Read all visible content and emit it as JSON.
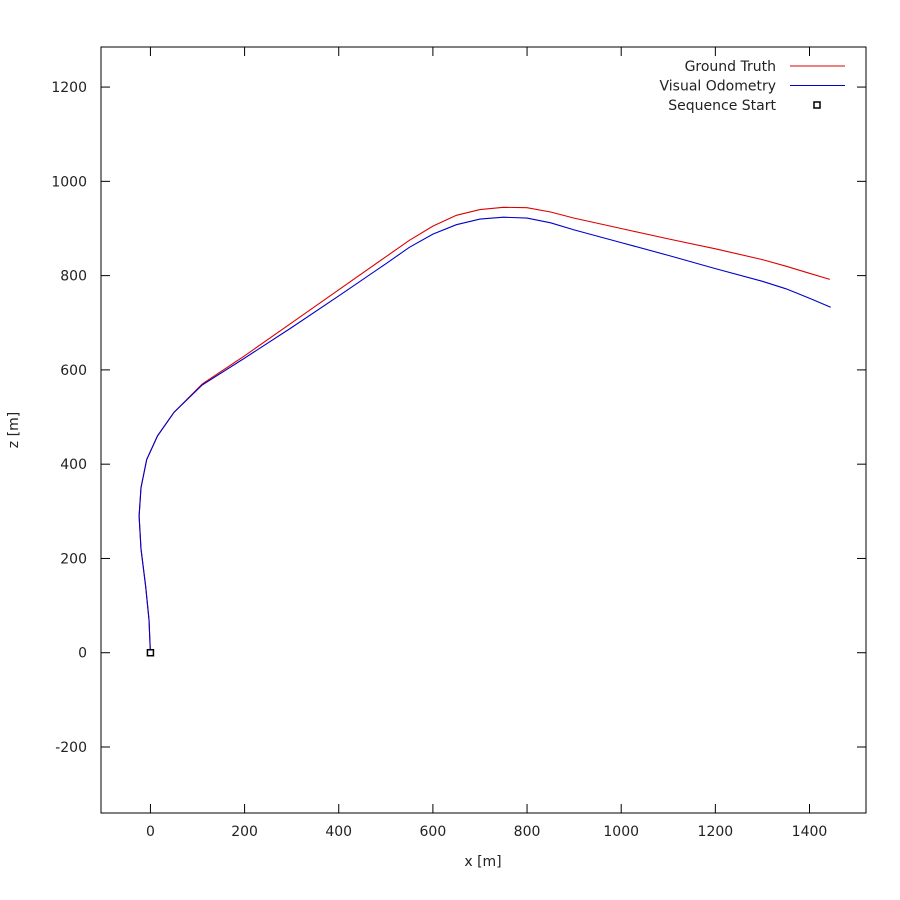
{
  "chart_data": {
    "type": "line",
    "title": "",
    "xlabel": "x [m]",
    "ylabel": "z [m]",
    "xlim": [
      -105,
      1520
    ],
    "ylim": [
      -340,
      1285
    ],
    "xticks": [
      0,
      200,
      400,
      600,
      800,
      1000,
      1200,
      1400
    ],
    "yticks": [
      -200,
      0,
      200,
      400,
      600,
      800,
      1000,
      1200
    ],
    "grid": false,
    "legend_position": "top-right",
    "series": [
      {
        "name": "Ground Truth",
        "color": "#dd0000",
        "points": [
          [
            0,
            0
          ],
          [
            -3,
            70
          ],
          [
            -10,
            140
          ],
          [
            -20,
            220
          ],
          [
            -24,
            290
          ],
          [
            -20,
            350
          ],
          [
            -8,
            410
          ],
          [
            15,
            460
          ],
          [
            50,
            510
          ],
          [
            110,
            570
          ],
          [
            200,
            630
          ],
          [
            300,
            700
          ],
          [
            400,
            770
          ],
          [
            500,
            840
          ],
          [
            550,
            875
          ],
          [
            600,
            905
          ],
          [
            650,
            928
          ],
          [
            700,
            940
          ],
          [
            750,
            945
          ],
          [
            800,
            944
          ],
          [
            850,
            935
          ],
          [
            900,
            922
          ],
          [
            1000,
            900
          ],
          [
            1100,
            878
          ],
          [
            1200,
            857
          ],
          [
            1300,
            834
          ],
          [
            1350,
            820
          ],
          [
            1400,
            805
          ],
          [
            1443,
            792
          ]
        ]
      },
      {
        "name": "Visual Odometry",
        "color": "#0000cc",
        "points": [
          [
            0,
            0
          ],
          [
            -3,
            70
          ],
          [
            -10,
            140
          ],
          [
            -20,
            220
          ],
          [
            -24,
            290
          ],
          [
            -20,
            350
          ],
          [
            -8,
            410
          ],
          [
            15,
            460
          ],
          [
            50,
            510
          ],
          [
            110,
            568
          ],
          [
            200,
            625
          ],
          [
            300,
            690
          ],
          [
            400,
            757
          ],
          [
            500,
            825
          ],
          [
            550,
            860
          ],
          [
            600,
            888
          ],
          [
            650,
            908
          ],
          [
            700,
            920
          ],
          [
            750,
            924
          ],
          [
            800,
            922
          ],
          [
            850,
            912
          ],
          [
            900,
            897
          ],
          [
            1000,
            870
          ],
          [
            1100,
            843
          ],
          [
            1200,
            815
          ],
          [
            1300,
            788
          ],
          [
            1350,
            772
          ],
          [
            1400,
            752
          ],
          [
            1445,
            733
          ]
        ]
      }
    ],
    "markers": [
      {
        "name": "Sequence Start",
        "x": 0,
        "y": 0,
        "shape": "square"
      }
    ]
  }
}
